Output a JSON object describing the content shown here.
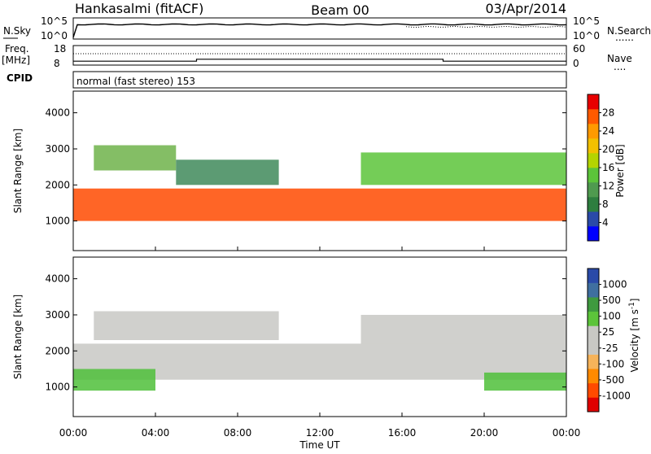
{
  "header": {
    "station": "Hankasalmi (fitACF)",
    "beam": "Beam 00",
    "date": "03/Apr/2014"
  },
  "sidebar": {
    "nsky": "N.Sky",
    "freq_line1": "Freq.",
    "freq_line2": "[MHz]",
    "cpid": "CPID",
    "nsearch": "N.Search",
    "nave": "Nave",
    "dotted_marker": "......",
    "dotted_marker_short": "...."
  },
  "cpid_text": "normal (fast stereo) 153",
  "chart_data": [
    {
      "type": "line",
      "name": "noise-panel",
      "left_ticks": [
        "10^5",
        "10^0"
      ],
      "right_ticks": [
        "10^5",
        "10^0"
      ],
      "series": [
        {
          "name": "N.Sky",
          "style": "solid"
        },
        {
          "name": "N.Search",
          "style": "dotted"
        }
      ]
    },
    {
      "type": "line",
      "name": "freq-nave-panel",
      "left_ticks": [
        "18",
        "8"
      ],
      "right_ticks": [
        "60",
        "0"
      ],
      "series": [
        {
          "name": "Freq.",
          "style": "solid",
          "unit": "MHz",
          "points": [
            [
              0,
              10
            ],
            [
              6,
              10
            ],
            [
              6,
              11
            ],
            [
              18,
              11
            ],
            [
              18,
              10
            ],
            [
              24,
              10
            ]
          ]
        },
        {
          "name": "Nave",
          "style": "dotted",
          "points": [
            [
              0,
              35
            ],
            [
              24,
              35
            ]
          ]
        }
      ]
    },
    {
      "type": "heatmap",
      "name": "power-panel",
      "ylabel": "Slant Range [km]",
      "yticks": [
        "4000",
        "3000",
        "2000",
        "1000"
      ],
      "ylim": [
        180,
        4600
      ],
      "xlim": [
        0,
        24
      ],
      "colorbar": {
        "label": "Power [dB]",
        "ticks": [
          "28",
          "24",
          "20",
          "16",
          "12",
          "8",
          "4"
        ],
        "colors": [
          "#0000ff",
          "#2a4aa8",
          "#2e7e3f",
          "#4f9a4f",
          "#5cc43a",
          "#b4d400",
          "#f2c000",
          "#ff9a00",
          "#ff5a00",
          "#e80000"
        ]
      },
      "bands": [
        {
          "x0": 0,
          "x1": 24,
          "y0": 1000,
          "y1": 1900,
          "color": "#ff4a00"
        },
        {
          "x0": 1,
          "x1": 5,
          "y0": 2400,
          "y1": 3100,
          "color": "#6fb34a"
        },
        {
          "x0": 5,
          "x1": 10,
          "y0": 2000,
          "y1": 2700,
          "color": "#3f8a5a"
        },
        {
          "x0": 14,
          "x1": 24,
          "y0": 2000,
          "y1": 2900,
          "color": "#5cc43a"
        }
      ]
    },
    {
      "type": "heatmap",
      "name": "velocity-panel",
      "ylabel": "Slant Range [km]",
      "yticks": [
        "4000",
        "3000",
        "2000",
        "1000"
      ],
      "ylim": [
        180,
        4600
      ],
      "xlim": [
        0,
        24
      ],
      "colorbar": {
        "label": "Velocity [m s^-1]",
        "ticks": [
          "1000",
          "500",
          "100",
          "25",
          "-25",
          "-100",
          "-500",
          "-1000"
        ],
        "colors": [
          "#e00000",
          "#ff4a00",
          "#ff8a00",
          "#f6b35a",
          "#c8c8c4",
          "#c8c8c4",
          "#5cc43a",
          "#3f9a3f",
          "#3f6fa0",
          "#2a4aa8"
        ]
      },
      "bands": [
        {
          "x0": 0,
          "x1": 24,
          "y0": 1200,
          "y1": 2200,
          "color": "#c8c8c4"
        },
        {
          "x0": 0,
          "x1": 4,
          "y0": 900,
          "y1": 1500,
          "color": "#4fbf3a"
        },
        {
          "x0": 20,
          "x1": 24,
          "y0": 900,
          "y1": 1400,
          "color": "#4fbf3a"
        },
        {
          "x0": 1,
          "x1": 10,
          "y0": 2300,
          "y1": 3100,
          "color": "#c8c8c4"
        },
        {
          "x0": 14,
          "x1": 24,
          "y0": 2200,
          "y1": 3000,
          "color": "#c8c8c4"
        }
      ]
    }
  ],
  "xaxis": {
    "label": "Time UT",
    "ticks": [
      "00:00",
      "04:00",
      "08:00",
      "12:00",
      "16:00",
      "20:00",
      "00:00"
    ]
  }
}
